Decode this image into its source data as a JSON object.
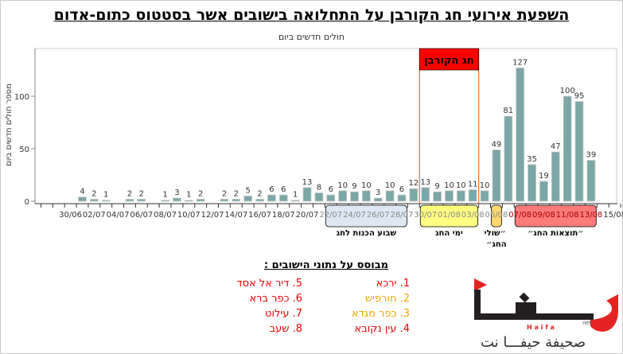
{
  "title": "השפעת אירועי חג הקורבן על התחלואה בישובים אשר בסטטוס כתום-אדום",
  "chart_data": {
    "type": "bar",
    "title": "חולים חדשים ביום",
    "ylabel": "מספר חולים חדשים ביום",
    "xlabel": "",
    "ylim": [
      0,
      140
    ],
    "yticks": [
      0,
      50,
      100
    ],
    "start_date": "28/06",
    "days": [
      "28/06",
      "29/06",
      "30/06",
      "01/07",
      "02/07",
      "03/07",
      "04/07",
      "05/07",
      "06/07",
      "07/07",
      "08/07",
      "09/07",
      "10/07",
      "11/07",
      "12/07",
      "13/07",
      "14/07",
      "15/07",
      "16/07",
      "17/07",
      "18/07",
      "19/07",
      "20/07",
      "21/07",
      "22/07",
      "23/07",
      "24/07",
      "25/07",
      "26/07",
      "27/07",
      "28/07",
      "29/07",
      "30/07",
      "31/07",
      "01/08",
      "02/08",
      "03/08",
      "04/08",
      "05/08",
      "06/08",
      "07/08",
      "08/08",
      "09/08",
      "10/08",
      "11/08",
      "12/08",
      "13/08",
      "14/08",
      "15/08",
      "16/08"
    ],
    "values": [
      null,
      null,
      null,
      4,
      2,
      1,
      null,
      2,
      2,
      null,
      1,
      3,
      1,
      2,
      null,
      2,
      2,
      5,
      2,
      6,
      6,
      1,
      13,
      8,
      6,
      10,
      9,
      10,
      3,
      10,
      6,
      12,
      13,
      9,
      10,
      10,
      11,
      10,
      49,
      81,
      127,
      35,
      19,
      47,
      100,
      95,
      39,
      null,
      null,
      null
    ],
    "xtick_labels": [
      "30/06",
      "02/07",
      "04/07",
      "06/07",
      "08/07",
      "10/07",
      "12/07",
      "14/07",
      "16/07",
      "18/07",
      "20/07",
      "22/07",
      "24/07",
      "26/07",
      "28/07",
      "30/07",
      "01/08",
      "03/08",
      "05/08",
      "07/08",
      "09/08",
      "11/08",
      "13/08",
      "15/08"
    ],
    "bar_color": "#7ba7a6",
    "highlight": {
      "label": "חג הקורבן",
      "from": "30/07",
      "to": "04/08",
      "color": "#ff0000",
      "line_color": "#f07020"
    },
    "periods": [
      {
        "label": "שבוע הכנות לחג",
        "from": "22/07",
        "to": "29/07",
        "color": "#dde8f4",
        "text_color": "#888"
      },
      {
        "label": "ימי החג",
        "from": "30/07",
        "to": "04/08",
        "color": "#ffff80",
        "text_color": "#888"
      },
      {
        "label": "״שולי החג״",
        "label_lines": [
          "״שולי",
          "החג״"
        ],
        "from": "05/08",
        "to": "06/08",
        "color": "#ffd970",
        "text_color": "#888"
      },
      {
        "label": "״תוצאות החג״",
        "from": "07/08",
        "to": "14/08",
        "color": "#ff7b7b",
        "text_color": "#a00"
      }
    ]
  },
  "sources": {
    "heading": "מבוסס על נתוני הישובים :",
    "right_column": [
      {
        "label": "1.  ירכא",
        "color": "red"
      },
      {
        "label": "2. חורפיש",
        "color": "amber"
      },
      {
        "label": "3. כפר מגדא",
        "color": "amber"
      },
      {
        "label": "4. עין נקובא",
        "color": "red"
      }
    ],
    "left_column": [
      {
        "label": "5. דיר אל אסד",
        "color": "red"
      },
      {
        "label": "6. כפר ברא",
        "color": "red"
      },
      {
        "label": "7. עילוט",
        "color": "red"
      },
      {
        "label": "8. שעב",
        "color": "red"
      }
    ]
  },
  "logo": {
    "text_ar": "صحيفة حيفـــا نت",
    "brand": "حيفا",
    "latin": "Haifa",
    "suffix": "net"
  }
}
